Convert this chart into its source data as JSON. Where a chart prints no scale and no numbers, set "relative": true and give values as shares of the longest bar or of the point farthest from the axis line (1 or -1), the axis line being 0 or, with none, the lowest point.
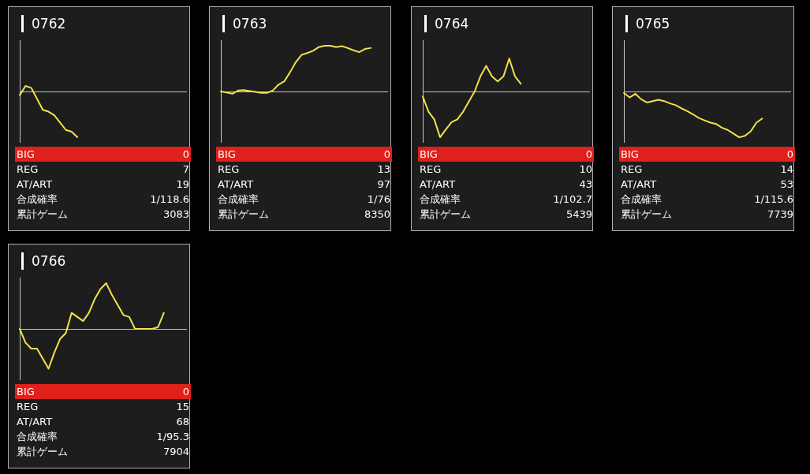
{
  "chart_data": [
    {
      "type": "line",
      "title": "0762",
      "relative": true,
      "marker": "none",
      "color": "#f2e14c",
      "categories": [
        null,
        null,
        null,
        null,
        null,
        null,
        null,
        null,
        null,
        null,
        null,
        null,
        null,
        null,
        null,
        null,
        null,
        null,
        null,
        null,
        null,
        null,
        null,
        null,
        null,
        null,
        null,
        null,
        null,
        null
      ],
      "values": [
        -0.08,
        0.12,
        0.08,
        -0.16,
        -0.4,
        -0.44,
        -0.52,
        -0.68,
        -0.84,
        -0.88,
        -1,
        null,
        null,
        null,
        null,
        null,
        null,
        null,
        null,
        null,
        null,
        null,
        null,
        null,
        null,
        null,
        null,
        null,
        null,
        null
      ],
      "annotations": [
        "BIG",
        "0",
        "REG",
        "7",
        "AT/ART",
        "19",
        "合成確率",
        "1/118.6",
        "累計ゲーム",
        "3083"
      ]
    },
    {
      "type": "line",
      "title": "0763",
      "relative": true,
      "marker": "none",
      "color": "#f2e14c",
      "categories": [
        null,
        null,
        null,
        null,
        null,
        null,
        null,
        null,
        null,
        null,
        null,
        null,
        null,
        null,
        null,
        null,
        null,
        null,
        null,
        null,
        null,
        null,
        null,
        null,
        null,
        null,
        null,
        null,
        null,
        null
      ],
      "values": [
        0,
        -0.02,
        -0.05,
        0.02,
        0.03,
        0.01,
        -0.01,
        -0.03,
        -0.03,
        0.02,
        0.15,
        0.22,
        0.42,
        0.64,
        0.8,
        0.84,
        0.89,
        0.97,
        1,
        1,
        0.97,
        0.99,
        0.95,
        0.9,
        0.86,
        0.93,
        0.95,
        null,
        null,
        null
      ],
      "annotations": [
        "BIG",
        "0",
        "REG",
        "13",
        "AT/ART",
        "97",
        "合成確率",
        "1/76",
        "累計ゲーム",
        "8350"
      ]
    },
    {
      "type": "line",
      "title": "0764",
      "relative": true,
      "marker": "none",
      "color": "#f2e14c",
      "categories": [
        null,
        null,
        null,
        null,
        null,
        null,
        null,
        null,
        null,
        null,
        null,
        null,
        null,
        null,
        null,
        null,
        null,
        null,
        null,
        null,
        null,
        null,
        null,
        null,
        null,
        null,
        null,
        null,
        null,
        null
      ],
      "values": [
        -0.11,
        -0.44,
        -0.61,
        -1,
        -0.83,
        -0.67,
        -0.61,
        -0.44,
        -0.22,
        0,
        0.33,
        0.56,
        0.33,
        0.22,
        0.33,
        0.72,
        0.33,
        0.17,
        null,
        null,
        null,
        null,
        null,
        null,
        null,
        null,
        null,
        null,
        null,
        null
      ],
      "annotations": [
        "BIG",
        "0",
        "REG",
        "10",
        "AT/ART",
        "43",
        "合成確率",
        "1/102.7",
        "累計ゲーム",
        "5439"
      ]
    },
    {
      "type": "line",
      "title": "0765",
      "relative": true,
      "marker": "none",
      "color": "#f2e14c",
      "categories": [
        null,
        null,
        null,
        null,
        null,
        null,
        null,
        null,
        null,
        null,
        null,
        null,
        null,
        null,
        null,
        null,
        null,
        null,
        null,
        null,
        null,
        null,
        null,
        null,
        null,
        null,
        null,
        null,
        null,
        null
      ],
      "values": [
        -0.03,
        -0.13,
        -0.05,
        -0.17,
        -0.24,
        -0.21,
        -0.18,
        -0.21,
        -0.26,
        -0.3,
        -0.37,
        -0.43,
        -0.5,
        -0.58,
        -0.63,
        -0.68,
        -0.71,
        -0.79,
        -0.84,
        -0.92,
        -1,
        -0.97,
        -0.87,
        -0.68,
        -0.59,
        null,
        null,
        null,
        null,
        null
      ],
      "annotations": [
        "BIG",
        "0",
        "REG",
        "14",
        "AT/ART",
        "53",
        "合成確率",
        "1/115.6",
        "累計ゲーム",
        "7739"
      ]
    },
    {
      "type": "line",
      "title": "0766",
      "relative": true,
      "marker": "none",
      "color": "#f2e14c",
      "categories": [
        null,
        null,
        null,
        null,
        null,
        null,
        null,
        null,
        null,
        null,
        null,
        null,
        null,
        null,
        null,
        null,
        null,
        null,
        null,
        null,
        null,
        null,
        null,
        null,
        null,
        null,
        null,
        null,
        null,
        null
      ],
      "values": [
        0,
        -0.3,
        -0.43,
        -0.43,
        -0.65,
        -0.87,
        -0.52,
        -0.22,
        -0.09,
        0.35,
        0.26,
        0.17,
        0.35,
        0.65,
        0.87,
        1,
        0.74,
        0.52,
        0.3,
        0.26,
        0,
        0,
        0,
        0,
        0.04,
        0.35,
        null,
        null,
        null,
        null
      ],
      "annotations": [
        "BIG",
        "0",
        "REG",
        "15",
        "AT/ART",
        "68",
        "合成確率",
        "1/95.3",
        "累計ゲーム",
        "7904"
      ]
    }
  ]
}
